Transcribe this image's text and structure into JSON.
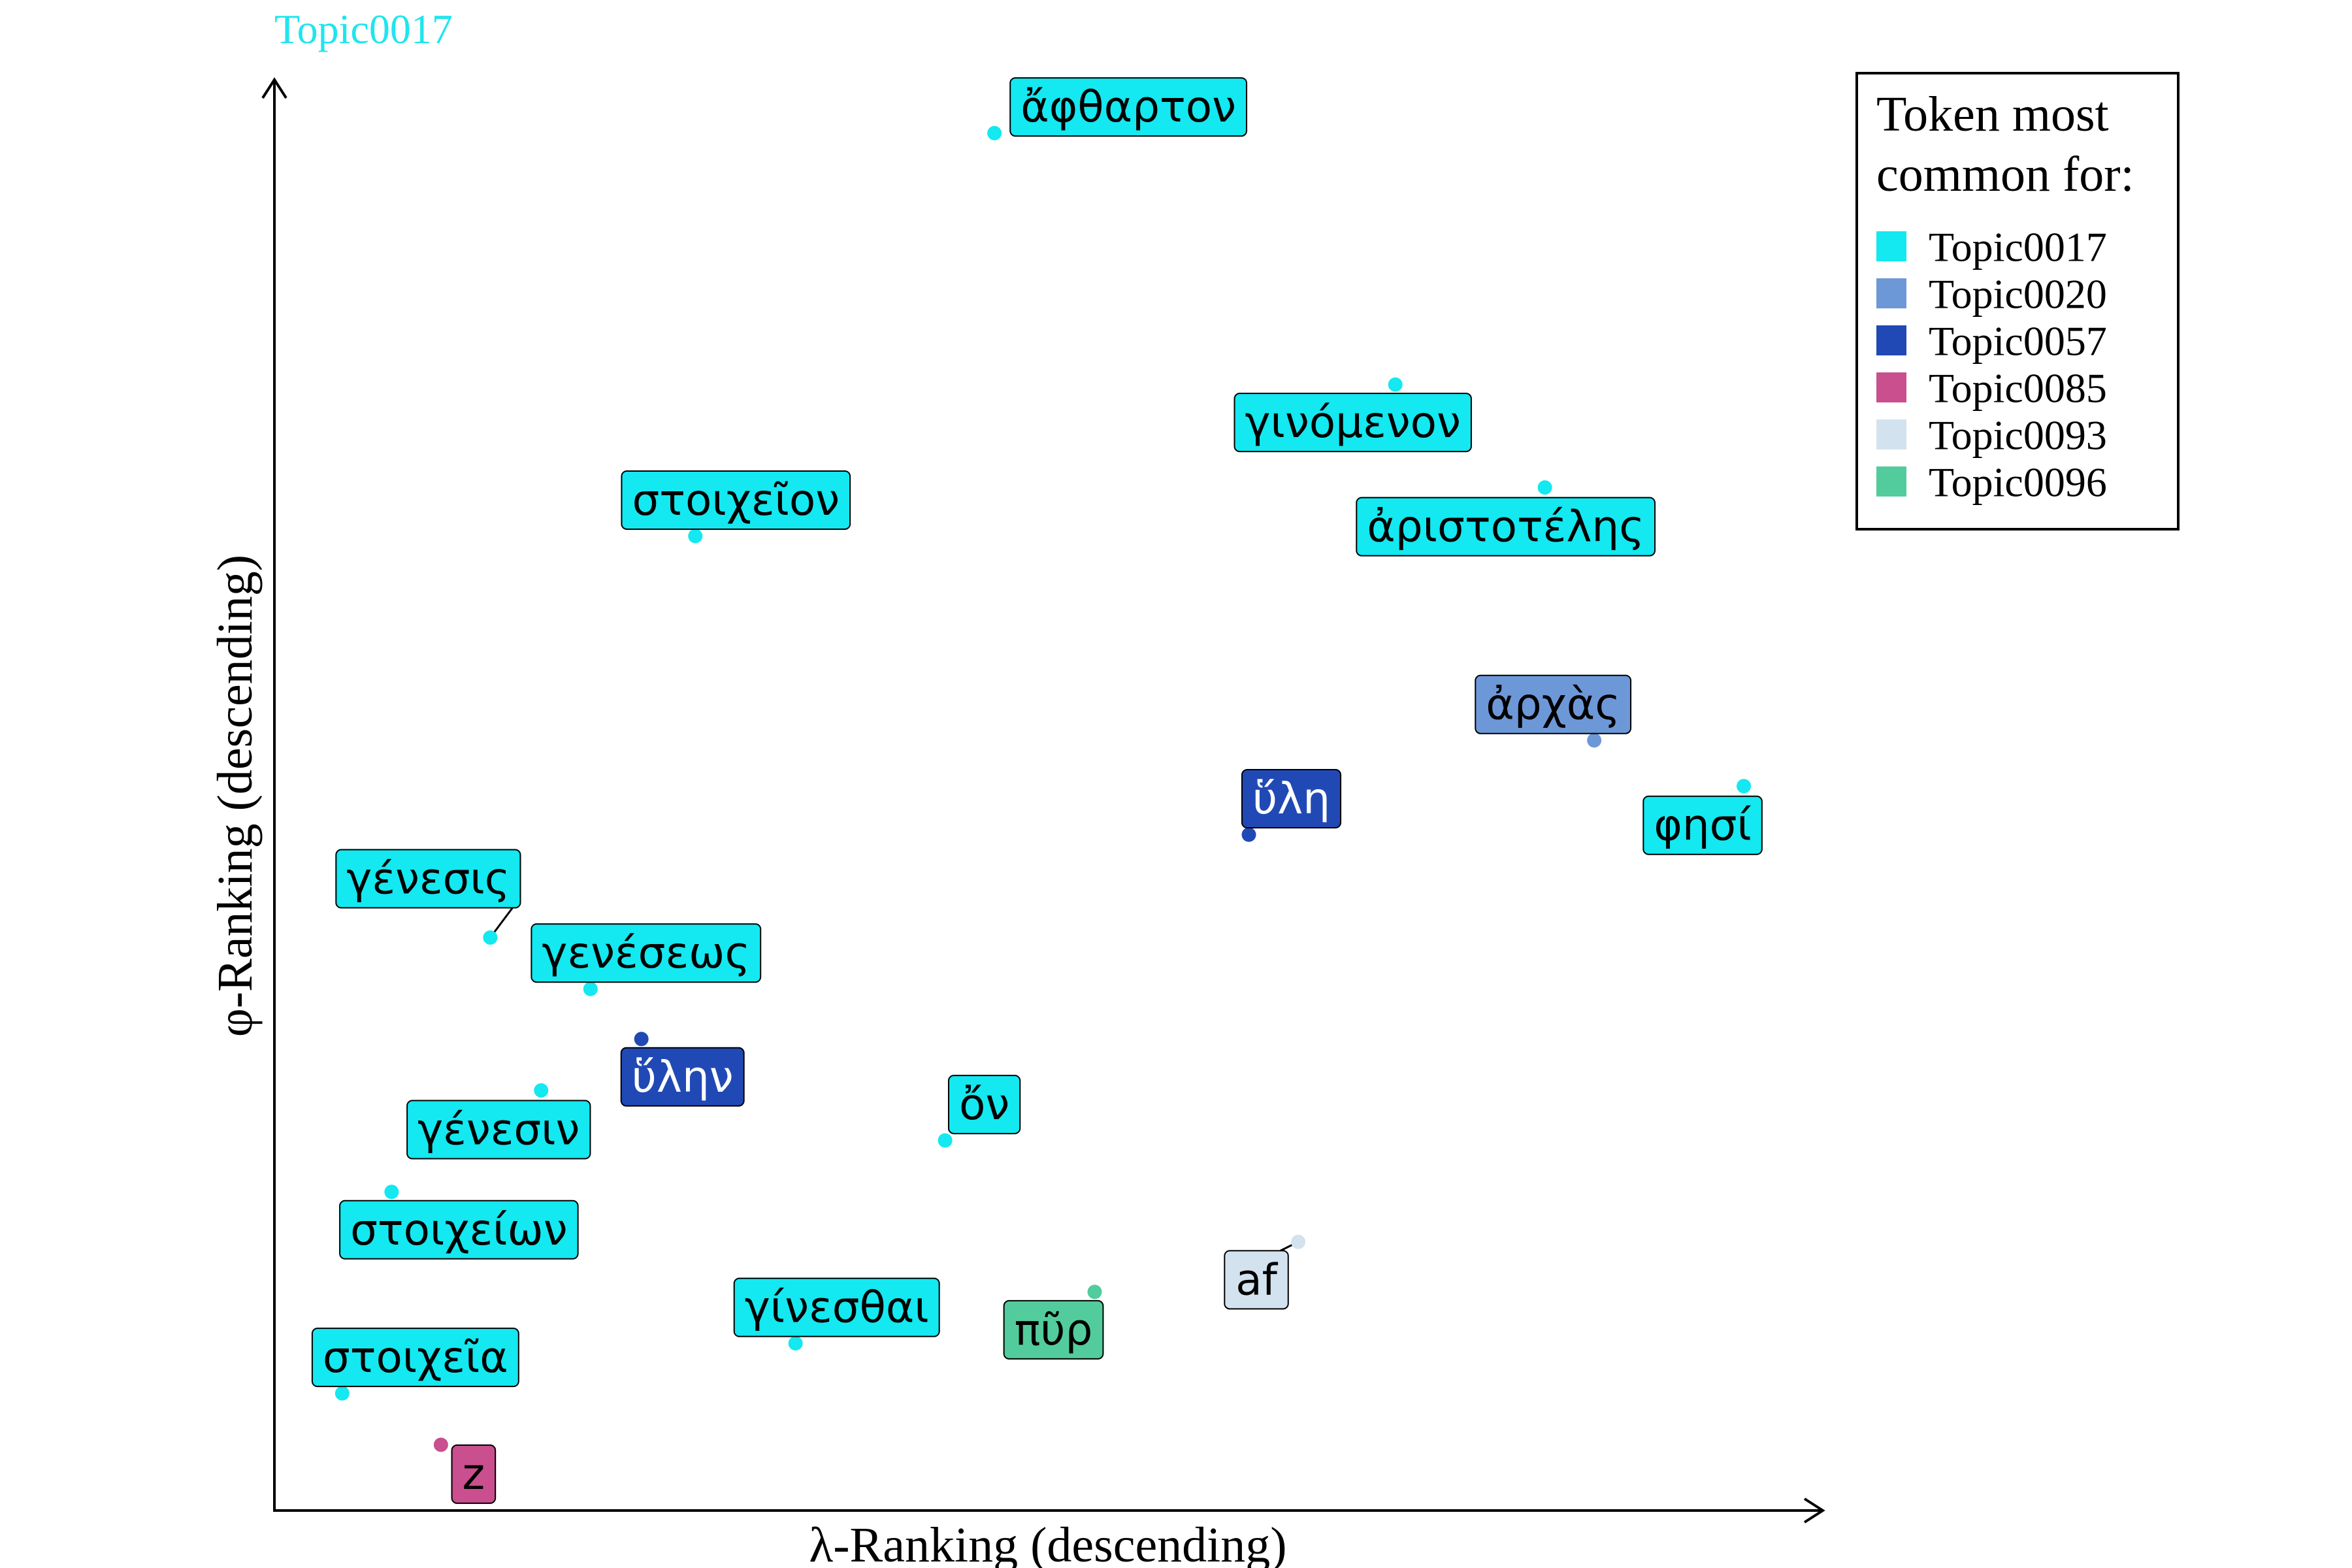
{
  "chart_data": {
    "type": "scatter",
    "title": "Topic0017",
    "title_color": "#1FE5EE",
    "xlabel": "λ-Ranking (descending)",
    "ylabel": "φ-Ranking (descending)",
    "xlim": [
      0,
      100
    ],
    "ylim": [
      0,
      100
    ],
    "grid": false,
    "legend_position": "top-right",
    "legend": {
      "title_line1": "Token most",
      "title_line2": "common for:",
      "entries": [
        {
          "name": "Topic0017",
          "color": "#14E8F0"
        },
        {
          "name": "Topic0020",
          "color": "#6D98D8"
        },
        {
          "name": "Topic0057",
          "color": "#2149B5"
        },
        {
          "name": "Topic0085",
          "color": "#C94F8E"
        },
        {
          "name": "Topic0093",
          "color": "#D3E2EF"
        },
        {
          "name": "Topic0096",
          "color": "#52CC9C"
        }
      ]
    },
    "points": [
      {
        "label": "ἄφθαρτον",
        "x": 46.7,
        "y": 96.4,
        "topic": 0
      },
      {
        "label": "γινόμενον",
        "x": 72.7,
        "y": 78.8,
        "topic": 0
      },
      {
        "label": "ἀριστοτέλης",
        "x": 82.4,
        "y": 71.6,
        "topic": 0
      },
      {
        "label": "στοιχεῖον",
        "x": 27.3,
        "y": 68.2,
        "topic": 0
      },
      {
        "label": "ἀρχὰς",
        "x": 85.6,
        "y": 53.9,
        "topic": 1
      },
      {
        "label": "φησί",
        "x": 95.3,
        "y": 50.7,
        "topic": 0
      },
      {
        "label": "ὕλη",
        "x": 63.2,
        "y": 47.3,
        "topic": 2
      },
      {
        "label": "γένεσις",
        "x": 14.0,
        "y": 40.1,
        "topic": 0
      },
      {
        "label": "γενέσεως",
        "x": 20.5,
        "y": 36.5,
        "topic": 0
      },
      {
        "label": "ὕλην",
        "x": 23.8,
        "y": 33.0,
        "topic": 2
      },
      {
        "label": "γένεσιν",
        "x": 17.3,
        "y": 29.4,
        "topic": 0
      },
      {
        "label": "ὄν",
        "x": 43.5,
        "y": 25.9,
        "topic": 0
      },
      {
        "label": "στοιχείων",
        "x": 7.6,
        "y": 22.3,
        "topic": 0
      },
      {
        "label": "af",
        "x": 66.4,
        "y": 18.8,
        "topic": 4
      },
      {
        "label": "πῦρ",
        "x": 53.2,
        "y": 15.3,
        "topic": 5
      },
      {
        "label": "γίνεσθαι",
        "x": 33.8,
        "y": 11.7,
        "topic": 0
      },
      {
        "label": "στοιχεῖα",
        "x": 4.4,
        "y": 8.2,
        "topic": 0
      },
      {
        "label": "z",
        "x": 10.8,
        "y": 4.6,
        "topic": 3
      }
    ]
  }
}
